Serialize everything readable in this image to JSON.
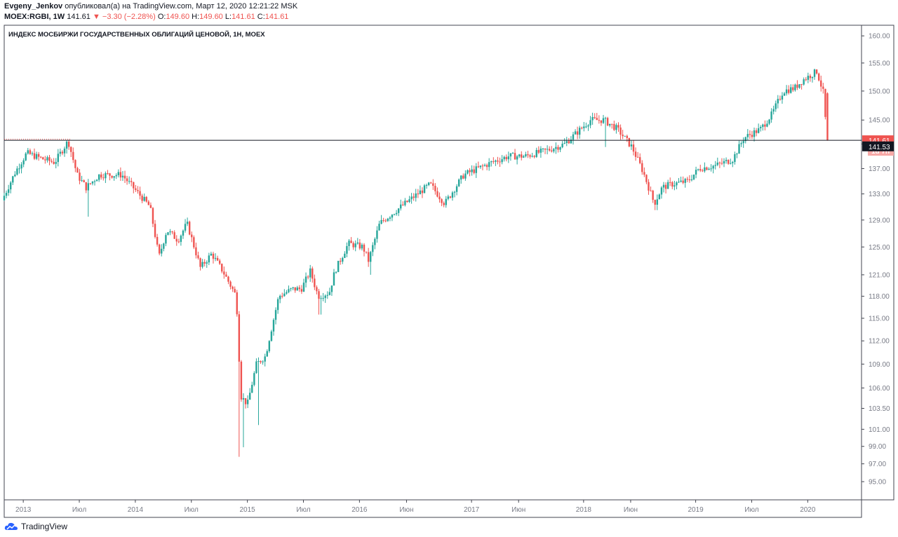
{
  "header": {
    "author": "Evgeny_Jenkov",
    "published_text": "опубликовал(а) на TradingView.com, Март 12, 2020 12:21:22 MSK",
    "symbol": "MOEX:RGBI, 1W",
    "last": "141.61",
    "change": "−3.30 (−2.28%)",
    "o_label": "O:",
    "o_value": "149.60",
    "h_label": "H:",
    "h_value": "149.60",
    "l_label": "L:",
    "l_value": "141.61",
    "c_label": "C:",
    "c_value": "141.61"
  },
  "footer": {
    "brand": "TradingView"
  },
  "colors": {
    "up": "#26a69a",
    "down": "#ef5350",
    "line": "#131722",
    "axis_text": "#787b86"
  },
  "chart_data": {
    "type": "candlestick",
    "title": "ИНДЕКС МОСБИРЖИ ГОСУДАРСТВЕННЫХ ОБЛИГАЦИЙ ЦЕНОВОЙ, 1Н, MOEX",
    "y_scale": "log",
    "ylim": [
      93.0,
      162.0
    ],
    "y_ticks": [
      160.0,
      155.0,
      150.0,
      145.0,
      141.0,
      137.0,
      133.0,
      129.0,
      125.0,
      121.0,
      118.0,
      115.0,
      112.0,
      109.0,
      106.0,
      103.5,
      101.0,
      99.0,
      97.0,
      95.0
    ],
    "x_ticks": [
      {
        "label": "2013",
        "t": 2013.0
      },
      {
        "label": "Июл",
        "t": 2013.5
      },
      {
        "label": "2014",
        "t": 2014.0
      },
      {
        "label": "Июл",
        "t": 2014.5
      },
      {
        "label": "2015",
        "t": 2015.0
      },
      {
        "label": "Июл",
        "t": 2015.5
      },
      {
        "label": "2016",
        "t": 2016.0
      },
      {
        "label": "Июн",
        "t": 2016.42
      },
      {
        "label": "2017",
        "t": 2017.0
      },
      {
        "label": "Июн",
        "t": 2017.42
      },
      {
        "label": "2018",
        "t": 2018.0
      },
      {
        "label": "Июн",
        "t": 2018.42
      },
      {
        "label": "2019",
        "t": 2019.0
      },
      {
        "label": "Июл",
        "t": 2019.5
      },
      {
        "label": "2020",
        "t": 2020.0
      }
    ],
    "x_range": [
      2012.83,
      2020.48
    ],
    "key_points": [
      {
        "t": 2012.83,
        "v": 132.0
      },
      {
        "t": 2012.95,
        "v": 136.5
      },
      {
        "t": 2013.05,
        "v": 139.5
      },
      {
        "t": 2013.2,
        "v": 138.5
      },
      {
        "t": 2013.3,
        "v": 138.0
      },
      {
        "t": 2013.42,
        "v": 141.5
      },
      {
        "t": 2013.5,
        "v": 136.0
      },
      {
        "t": 2013.58,
        "v": 134.0
      },
      {
        "t": 2013.7,
        "v": 136.0
      },
      {
        "t": 2013.9,
        "v": 136.0
      },
      {
        "t": 2014.0,
        "v": 134.0
      },
      {
        "t": 2014.15,
        "v": 131.0
      },
      {
        "t": 2014.23,
        "v": 123.5
      },
      {
        "t": 2014.3,
        "v": 127.5
      },
      {
        "t": 2014.4,
        "v": 126.0
      },
      {
        "t": 2014.48,
        "v": 128.5
      },
      {
        "t": 2014.6,
        "v": 122.0
      },
      {
        "t": 2014.7,
        "v": 124.0
      },
      {
        "t": 2014.8,
        "v": 121.5
      },
      {
        "t": 2014.92,
        "v": 118.0
      },
      {
        "t": 2014.96,
        "v": 105.0
      },
      {
        "t": 2015.02,
        "v": 104.0
      },
      {
        "t": 2015.1,
        "v": 109.0
      },
      {
        "t": 2015.18,
        "v": 110.0
      },
      {
        "t": 2015.3,
        "v": 118.0
      },
      {
        "t": 2015.42,
        "v": 119.0
      },
      {
        "t": 2015.5,
        "v": 119.0
      },
      {
        "t": 2015.58,
        "v": 121.5
      },
      {
        "t": 2015.65,
        "v": 118.0
      },
      {
        "t": 2015.75,
        "v": 118.5
      },
      {
        "t": 2015.8,
        "v": 121.5
      },
      {
        "t": 2015.92,
        "v": 125.5
      },
      {
        "t": 2016.05,
        "v": 125.0
      },
      {
        "t": 2016.1,
        "v": 123.0
      },
      {
        "t": 2016.2,
        "v": 128.5
      },
      {
        "t": 2016.35,
        "v": 130.5
      },
      {
        "t": 2016.5,
        "v": 132.5
      },
      {
        "t": 2016.65,
        "v": 134.5
      },
      {
        "t": 2016.78,
        "v": 131.5
      },
      {
        "t": 2016.95,
        "v": 136.0
      },
      {
        "t": 2017.2,
        "v": 138.0
      },
      {
        "t": 2017.35,
        "v": 139.0
      },
      {
        "t": 2017.5,
        "v": 139.0
      },
      {
        "t": 2017.7,
        "v": 140.0
      },
      {
        "t": 2017.85,
        "v": 141.0
      },
      {
        "t": 2018.08,
        "v": 145.0
      },
      {
        "t": 2018.2,
        "v": 145.0
      },
      {
        "t": 2018.32,
        "v": 143.5
      },
      {
        "t": 2018.45,
        "v": 140.5
      },
      {
        "t": 2018.55,
        "v": 136.5
      },
      {
        "t": 2018.65,
        "v": 131.5
      },
      {
        "t": 2018.72,
        "v": 134.0
      },
      {
        "t": 2018.8,
        "v": 134.5
      },
      {
        "t": 2018.95,
        "v": 135.0
      },
      {
        "t": 2019.05,
        "v": 137.0
      },
      {
        "t": 2019.2,
        "v": 137.5
      },
      {
        "t": 2019.35,
        "v": 138.5
      },
      {
        "t": 2019.45,
        "v": 142.0
      },
      {
        "t": 2019.6,
        "v": 143.5
      },
      {
        "t": 2019.7,
        "v": 146.0
      },
      {
        "t": 2019.8,
        "v": 150.0
      },
      {
        "t": 2019.9,
        "v": 150.5
      },
      {
        "t": 2019.98,
        "v": 152.0
      },
      {
        "t": 2020.1,
        "v": 153.5
      },
      {
        "t": 2020.16,
        "v": 149.6
      },
      {
        "t": 2020.19,
        "v": 141.61
      }
    ],
    "horizontal_line": {
      "value": 141.61
    },
    "last_price_label": "141.61",
    "countdown_label": "1d 7h",
    "crosshair_label": "141.53",
    "crosshair_value": 141.53
  }
}
